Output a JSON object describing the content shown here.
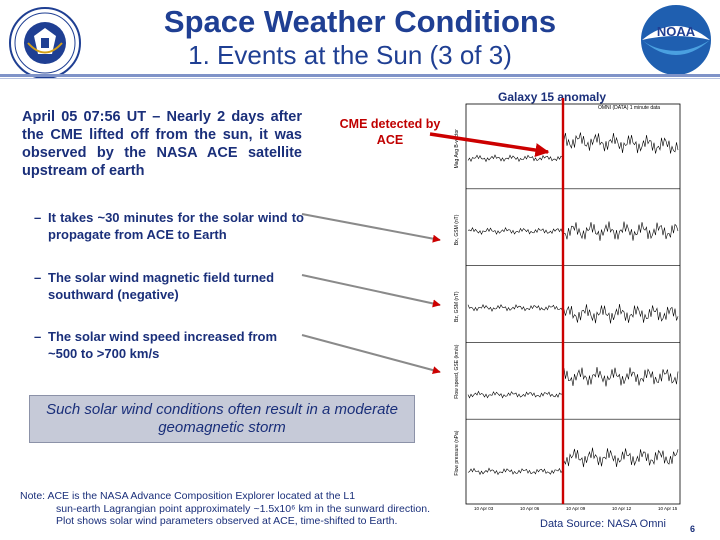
{
  "header": {
    "title": "Space Weather Conditions",
    "subtitle": "1. Events at the Sun (3 of 3)",
    "left_logo": "department-of-commerce-seal",
    "right_logo": "noaa-logo",
    "right_logo_text": "NOAA"
  },
  "body": {
    "intro": "April 05 07:56 UT – Nearly 2 days after the CME lifted off from the sun, it was observed by the NASA ACE satellite upstream of earth",
    "bullets": [
      "It takes ~30 minutes for the solar wind to propagate from ACE to Earth",
      "The solar wind magnetic field turned southward (negative)",
      "The solar wind speed increased from ~500 to >700 km/s"
    ],
    "bullet_marker": "–",
    "callout": "Such solar wind conditions often result in a moderate geomagnetic storm",
    "note_label": "Note:",
    "note_first": "ACE is the NASA Advance Composition Explorer located at the L1",
    "note_rest": "sun-earth Lagrangian point approximately ~1.5x10⁶ km in the sunward direction. Plot shows solar wind parameters observed at ACE, time-shifted to Earth."
  },
  "annotations": {
    "cme_label": "CME detected by ACE",
    "galaxy_label": "Galaxy 15 anomaly",
    "source": "Data Source: NASA Omni",
    "page_number": "6"
  },
  "plot": {
    "header_text": "OMNI (DATA) 1 minute data",
    "panel_labels": [
      "Mag Avg B-vector",
      "Bx, GSM (nT)",
      "Bz, GSM (nT)",
      "Flow speed, GSE (km/s)",
      "Flow pressure (nPa)"
    ],
    "x_ticks": [
      "10 Apr 03",
      "10 Apr 06",
      "10 Apr 09",
      "10 Apr 12",
      "10 Apr 15"
    ],
    "colors": {
      "title": "#1f3f93",
      "event_line": "#cc0000",
      "arrow": "#cc0000",
      "callout_bg": "#c6cad8"
    }
  }
}
